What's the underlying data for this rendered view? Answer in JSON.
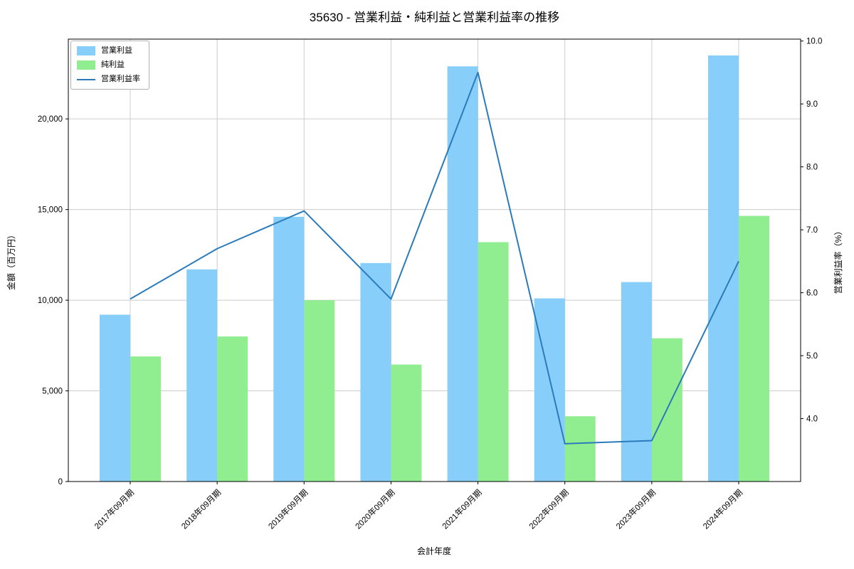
{
  "chart_data": {
    "type": "bar",
    "subtype": "grouped-bars-with-line-dual-axis",
    "title": "35630 - 営業利益・純利益と営業利益率の推移",
    "xlabel": "会計年度",
    "ylabel_left": "金額（百万円）",
    "ylabel_right": "営業利益率（%）",
    "categories": [
      "2017年09月期",
      "2018年09月期",
      "2019年09月期",
      "2020年09月期",
      "2021年09月期",
      "2022年09月期",
      "2023年09月期",
      "2024年09月期"
    ],
    "series": [
      {
        "name": "営業利益",
        "type": "bar",
        "axis": "left",
        "color": "#87CEFA",
        "values": [
          9200,
          11700,
          14600,
          12050,
          22900,
          10100,
          11000,
          23500
        ]
      },
      {
        "name": "純利益",
        "type": "bar",
        "axis": "left",
        "color": "#90EE90",
        "values": [
          6900,
          8000,
          10000,
          6450,
          13200,
          3600,
          7900,
          14650
        ]
      },
      {
        "name": "営業利益率",
        "type": "line",
        "axis": "right",
        "color": "#2B7BBA",
        "values": [
          5.9,
          6.7,
          7.3,
          5.9,
          9.5,
          3.6,
          3.65,
          6.5
        ]
      }
    ],
    "left_axis": {
      "min": 0,
      "max": 24400,
      "ticks": [
        0,
        5000,
        10000,
        15000,
        20000
      ]
    },
    "right_axis": {
      "min": 3.0,
      "max": 10.03,
      "ticks": [
        4.0,
        5.0,
        6.0,
        7.0,
        8.0,
        9.0,
        10.0
      ]
    },
    "grid": true,
    "legend_position": "upper left",
    "colors": {
      "grid": "#cccccc",
      "spine": "#000000",
      "text": "#000000"
    }
  }
}
